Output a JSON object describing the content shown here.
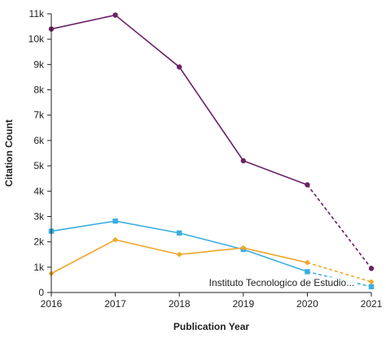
{
  "chart_data": {
    "type": "line",
    "xlabel": "Publication Year",
    "ylabel": "Citation Count",
    "x": [
      2016,
      2017,
      2018,
      2019,
      2020,
      2021
    ],
    "x_tick_labels": [
      "2016",
      "2017",
      "2018",
      "2019",
      "2020",
      "2021"
    ],
    "ylim": [
      0,
      11000
    ],
    "y_ticks": [
      0,
      1000,
      2000,
      3000,
      4000,
      5000,
      6000,
      7000,
      8000,
      9000,
      10000,
      11000
    ],
    "y_tick_labels": [
      "0",
      "1k",
      "2k",
      "3k",
      "4k",
      "5k",
      "6k",
      "7k",
      "8k",
      "9k",
      "10k",
      "11k"
    ],
    "grid": false,
    "legend": "none",
    "dashed_from_x": 2020,
    "series": [
      {
        "color": "#6b2166",
        "marker": "circle",
        "values": [
          10400,
          10950,
          8900,
          5200,
          4250,
          950
        ]
      },
      {
        "color": "#3aaee0",
        "marker": "square",
        "values": [
          2420,
          2820,
          2350,
          1700,
          820,
          230
        ]
      },
      {
        "color": "#f0a62a",
        "marker": "diamond",
        "values": [
          750,
          2080,
          1500,
          1760,
          1180,
          420
        ]
      }
    ],
    "annotations": [
      {
        "text": "Instituto Tecnologico de Estudio...",
        "x": 2019.6,
        "y": 250
      }
    ]
  }
}
